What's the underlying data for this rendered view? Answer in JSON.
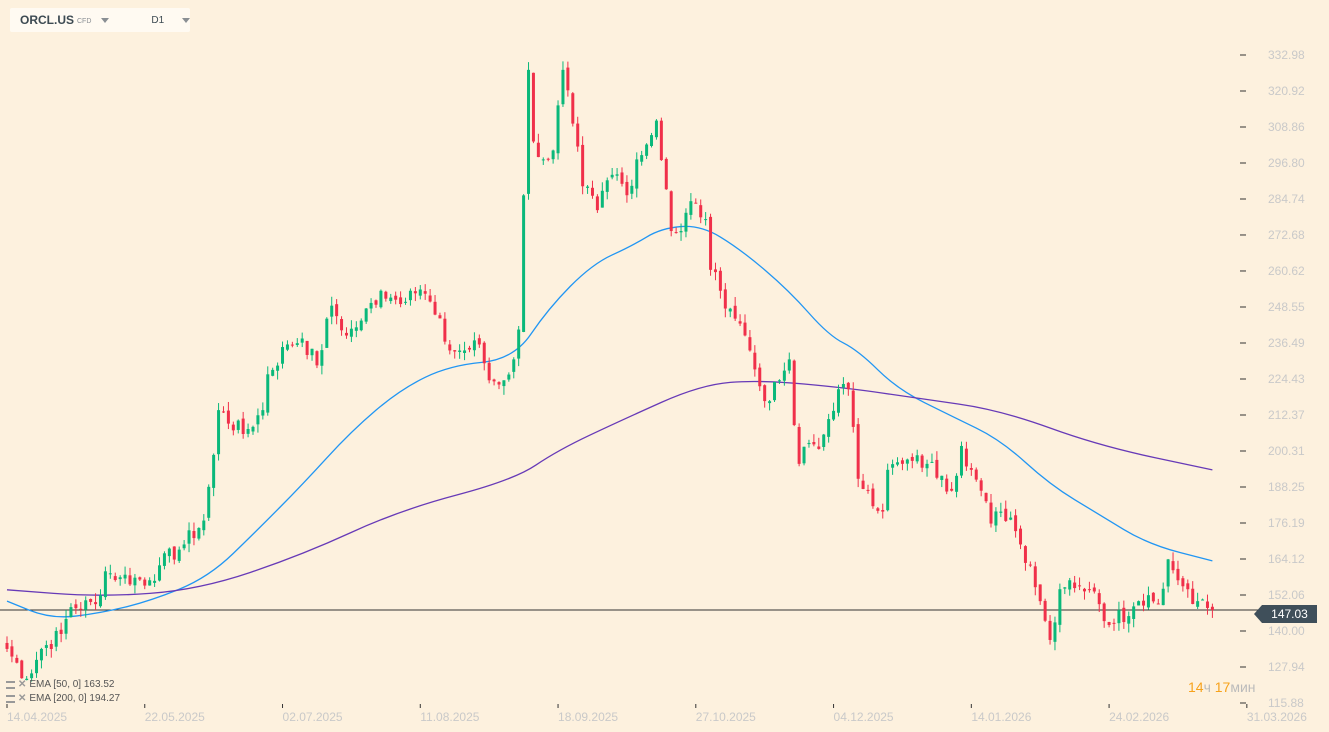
{
  "header": {
    "symbol": "ORCL.US",
    "type": "CFD",
    "timeframe": "D1"
  },
  "indicators": [
    {
      "label": "EMA [50, 0] 163.52",
      "color": "#2196f3"
    },
    {
      "label": "EMA [200, 0] 194.27",
      "color": "#673ab7"
    }
  ],
  "timer": {
    "hours": "14",
    "hours_unit": "ч",
    "minutes": "17",
    "minutes_unit": "мин"
  },
  "current_price": "147.03",
  "chart_data": {
    "type": "candlestick",
    "symbol": "ORCL.US",
    "ylim": [
      115.88,
      332.98
    ],
    "y_ticks": [
      "332.98",
      "320.92",
      "308.86",
      "296.80",
      "284.74",
      "272.68",
      "260.62",
      "248.55",
      "236.49",
      "224.43",
      "212.37",
      "200.31",
      "188.25",
      "176.19",
      "164.12",
      "152.06",
      "140.00",
      "127.94",
      "115.88"
    ],
    "x_ticks": [
      {
        "index": 0,
        "label": "14.04.2025"
      },
      {
        "index": 28,
        "label": "22.05.2025"
      },
      {
        "index": 56,
        "label": "02.07.2025"
      },
      {
        "index": 84,
        "label": "11.08.2025"
      },
      {
        "index": 112,
        "label": "18.09.2025"
      },
      {
        "index": 140,
        "label": "27.10.2025"
      },
      {
        "index": 168,
        "label": "04.12.2025"
      },
      {
        "index": 196,
        "label": "14.01.2026"
      },
      {
        "index": 224,
        "label": "24.02.2026"
      },
      {
        "index": 252,
        "label": "31.03.2026"
      }
    ],
    "total_slots": 262,
    "current_price": 147.03,
    "up_color": "#0ab87a",
    "down_color": "#f0304a",
    "closes": [
      [
        0,
        134
      ],
      [
        4,
        124
      ],
      [
        7,
        134
      ],
      [
        11,
        139
      ],
      [
        13,
        148
      ],
      [
        18,
        149
      ],
      [
        20,
        160
      ],
      [
        23,
        158
      ],
      [
        29,
        157
      ],
      [
        31,
        162
      ],
      [
        36,
        169
      ],
      [
        40,
        177
      ],
      [
        42,
        199
      ],
      [
        43,
        214
      ],
      [
        48,
        206
      ],
      [
        52,
        214
      ],
      [
        53,
        226
      ],
      [
        57,
        236
      ],
      [
        60,
        238
      ],
      [
        63,
        229
      ],
      [
        66,
        249
      ],
      [
        69,
        239
      ],
      [
        72,
        244
      ],
      [
        76,
        254
      ],
      [
        79,
        251
      ],
      [
        82,
        254
      ],
      [
        85,
        253
      ],
      [
        87,
        246
      ],
      [
        90,
        234
      ],
      [
        93,
        234
      ],
      [
        96,
        236
      ],
      [
        98,
        224
      ],
      [
        101,
        224
      ],
      [
        103,
        231
      ],
      [
        104,
        241
      ],
      [
        106,
        328
      ],
      [
        107,
        304
      ],
      [
        109,
        298
      ],
      [
        111,
        301
      ],
      [
        113,
        328
      ],
      [
        115,
        310
      ],
      [
        117,
        289
      ],
      [
        120,
        281
      ],
      [
        122,
        291
      ],
      [
        124,
        293
      ],
      [
        126,
        286
      ],
      [
        128,
        298
      ],
      [
        130,
        303
      ],
      [
        132,
        311
      ],
      [
        134,
        288
      ],
      [
        135,
        274
      ],
      [
        137,
        274
      ],
      [
        139,
        284
      ],
      [
        142,
        278
      ],
      [
        143,
        261
      ],
      [
        145,
        254
      ],
      [
        147,
        248
      ],
      [
        149,
        243
      ],
      [
        151,
        234
      ],
      [
        153,
        222
      ],
      [
        155,
        217
      ],
      [
        157,
        224
      ],
      [
        159,
        231
      ],
      [
        160,
        209
      ],
      [
        161,
        196
      ],
      [
        163,
        203
      ],
      [
        165,
        201
      ],
      [
        167,
        211
      ],
      [
        169,
        221
      ],
      [
        171,
        221
      ],
      [
        173,
        191
      ],
      [
        175,
        187
      ],
      [
        178,
        180
      ],
      [
        179,
        194
      ],
      [
        182,
        196
      ],
      [
        184,
        197
      ],
      [
        187,
        196
      ],
      [
        190,
        192
      ],
      [
        192,
        187
      ],
      [
        194,
        202
      ],
      [
        196,
        194
      ],
      [
        198,
        187
      ],
      [
        200,
        176
      ],
      [
        202,
        180
      ],
      [
        204,
        178
      ],
      [
        206,
        169
      ],
      [
        208,
        162
      ],
      [
        210,
        150
      ],
      [
        212,
        137
      ],
      [
        214,
        154
      ],
      [
        216,
        157
      ],
      [
        218,
        155
      ],
      [
        220,
        154
      ],
      [
        222,
        149
      ],
      [
        224,
        142
      ],
      [
        226,
        147
      ],
      [
        228,
        145
      ],
      [
        230,
        150
      ],
      [
        232,
        152
      ],
      [
        234,
        149
      ],
      [
        236,
        164
      ],
      [
        238,
        157
      ],
      [
        240,
        154
      ],
      [
        242,
        150
      ],
      [
        245,
        147.03
      ]
    ],
    "series": [
      {
        "name": "EMA 50",
        "color": "#2196f3",
        "points": [
          [
            0,
            150
          ],
          [
            9,
            144
          ],
          [
            19,
            146
          ],
          [
            29,
            150
          ],
          [
            41,
            158
          ],
          [
            51,
            174
          ],
          [
            60,
            189
          ],
          [
            70,
            207
          ],
          [
            80,
            221
          ],
          [
            90,
            229
          ],
          [
            103,
            231
          ],
          [
            110,
            248
          ],
          [
            119,
            263
          ],
          [
            127,
            269
          ],
          [
            133,
            275
          ],
          [
            141,
            276
          ],
          [
            149,
            268
          ],
          [
            159,
            254
          ],
          [
            167,
            239
          ],
          [
            173,
            234
          ],
          [
            181,
            221
          ],
          [
            192,
            212
          ],
          [
            202,
            204
          ],
          [
            212,
            189
          ],
          [
            222,
            179
          ],
          [
            232,
            169
          ],
          [
            245,
            163.5
          ]
        ]
      },
      {
        "name": "EMA 200",
        "color": "#673ab7",
        "points": [
          [
            0,
            153.8
          ],
          [
            19,
            151.4
          ],
          [
            39,
            153.8
          ],
          [
            60,
            165.5
          ],
          [
            80,
            180.6
          ],
          [
            103,
            190.6
          ],
          [
            112,
            200.6
          ],
          [
            125,
            210.7
          ],
          [
            141,
            222.5
          ],
          [
            153,
            224.1
          ],
          [
            171,
            221.4
          ],
          [
            185,
            218
          ],
          [
            202,
            214
          ],
          [
            222,
            202
          ],
          [
            245,
            194
          ]
        ]
      }
    ]
  }
}
